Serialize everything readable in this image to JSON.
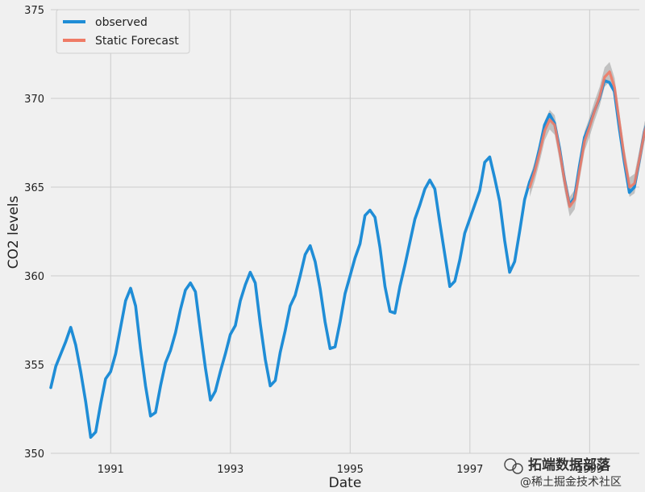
{
  "chart_data": {
    "type": "line",
    "title": "",
    "xlabel": "Date",
    "ylabel": "CO2 levels",
    "xlim": [
      1990.0,
      1999.83
    ],
    "ylim": [
      350,
      375
    ],
    "x_ticks": [
      1991,
      1993,
      1995,
      1997,
      1999
    ],
    "x_tick_labels": [
      "1991",
      "1993",
      "1995",
      "1997",
      "1999"
    ],
    "y_ticks": [
      350,
      355,
      360,
      365,
      370,
      375
    ],
    "y_tick_labels": [
      "350",
      "355",
      "360",
      "365",
      "370",
      "375"
    ],
    "grid": true,
    "legend_position": "upper-left",
    "series": [
      {
        "name": "observed",
        "color": "#1f8dd6",
        "x_start": 1990.0,
        "x_step": 0.0833,
        "values": [
          353.7,
          354.9,
          355.6,
          356.3,
          357.1,
          356.1,
          354.6,
          352.9,
          350.9,
          351.2,
          352.8,
          354.2,
          354.6,
          355.6,
          357.1,
          358.6,
          359.3,
          358.3,
          355.9,
          353.8,
          352.1,
          352.3,
          353.8,
          355.1,
          355.8,
          356.8,
          358.1,
          359.2,
          359.6,
          359.1,
          356.9,
          354.8,
          353.0,
          353.5,
          354.6,
          355.6,
          356.7,
          357.2,
          358.6,
          359.5,
          360.2,
          359.6,
          357.3,
          355.3,
          353.8,
          354.1,
          355.7,
          356.9,
          358.3,
          358.9,
          360.0,
          361.2,
          361.7,
          360.8,
          359.3,
          357.4,
          355.9,
          356.0,
          357.4,
          359.0,
          360.0,
          361.0,
          361.8,
          363.4,
          363.7,
          363.3,
          361.6,
          359.4,
          358.0,
          357.9,
          359.4,
          360.6,
          361.9,
          363.2,
          364.0,
          364.9,
          365.4,
          364.9,
          363.0,
          361.2,
          359.4,
          359.7,
          360.9,
          362.4,
          363.2,
          364.0,
          364.8,
          366.4,
          366.7,
          365.5,
          364.2,
          362.0,
          360.2,
          360.8,
          362.5,
          364.3,
          365.3,
          366.0,
          367.2,
          368.5,
          369.1,
          368.6,
          367.2,
          365.4,
          364.0,
          364.4,
          366.2,
          367.8,
          368.5,
          369.3,
          370.0,
          371.0,
          370.9,
          370.4,
          368.3,
          366.4,
          364.7,
          365.0,
          366.5,
          368.1,
          369.0,
          369.7,
          370.5,
          371.6,
          371.7,
          371.0,
          369.4,
          367.5,
          366.7,
          366.8,
          368.2,
          369.5,
          370.5,
          371.3,
          372.6,
          373.8,
          373.7,
          372.9,
          370.8,
          369.1,
          367.9,
          368.0,
          369.1,
          371.0
        ]
      },
      {
        "name": "Static Forecast",
        "color": "#ef7b66",
        "x_start": 1998.0,
        "x_step": 0.0833,
        "values": [
          365.0,
          365.9,
          367.0,
          368.2,
          368.8,
          368.5,
          367.0,
          365.3,
          363.9,
          364.3,
          366.0,
          367.6,
          368.4,
          369.3,
          370.1,
          371.2,
          371.5,
          370.6,
          368.6,
          366.6,
          365.0,
          365.2,
          366.6,
          368.1,
          369.0,
          369.9,
          370.8,
          371.8,
          372.0,
          371.1,
          369.2,
          367.3,
          366.3,
          366.7,
          368.2,
          369.4,
          370.3,
          371.1,
          372.3,
          373.3,
          373.4,
          372.7,
          370.9,
          369.2,
          367.8,
          368.0,
          369.2,
          370.4
        ],
        "ci_halfwidth": 0.55,
        "ci_color": "#9a9a9a"
      }
    ]
  },
  "watermark": {
    "label": "拓端数据部落",
    "footer": "@稀土掘金技术社区"
  }
}
